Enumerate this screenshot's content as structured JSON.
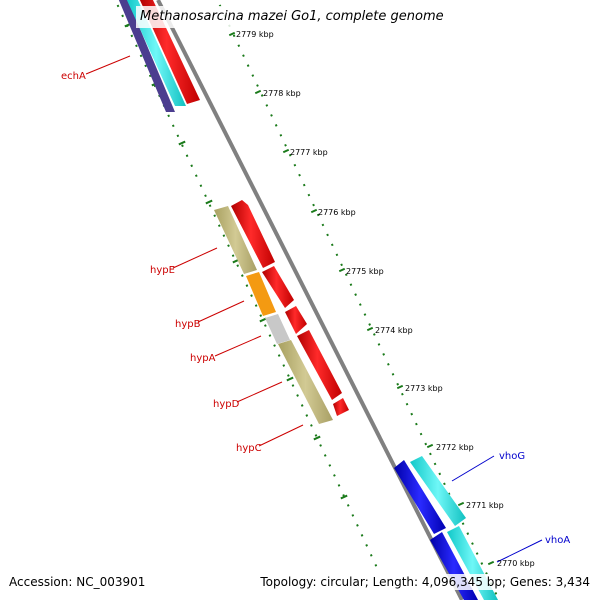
{
  "title": "Methanosarcina mazei Go1, complete genome",
  "footer": {
    "accession": "Accession: NC_003901",
    "summary": "Topology: circular; Length: 4,096,345 bp; Genes: 3,434"
  },
  "kbp_ticks": [
    "2779 kbp",
    "2778 kbp",
    "2777 kbp",
    "2776 kbp",
    "2775 kbp",
    "2774 kbp",
    "2773 kbp",
    "2772 kbp",
    "2771 kbp",
    "2770 kbp"
  ],
  "gene_labels": [
    {
      "name": "echA",
      "color": "#cc0000"
    },
    {
      "name": "hypE",
      "color": "#cc0000"
    },
    {
      "name": "hypB",
      "color": "#cc0000"
    },
    {
      "name": "hypA",
      "color": "#cc0000"
    },
    {
      "name": "hypD",
      "color": "#cc0000"
    },
    {
      "name": "hypC",
      "color": "#cc0000"
    },
    {
      "name": "vhoG",
      "color": "#0000cc"
    },
    {
      "name": "vhoA",
      "color": "#0000cc"
    }
  ],
  "colors": {
    "cds_forward": "#ff0000",
    "backbone": "#808080",
    "tick_dots": "#1a7a1a",
    "cds_blue": "#1010e0",
    "cds_cyan": "#10e8e8",
    "cds_navy": "#4b3d8f",
    "cog_khaki": "#c8be82",
    "cog_orange": "#f49a12",
    "cog_gray": "#c8c8c8"
  }
}
